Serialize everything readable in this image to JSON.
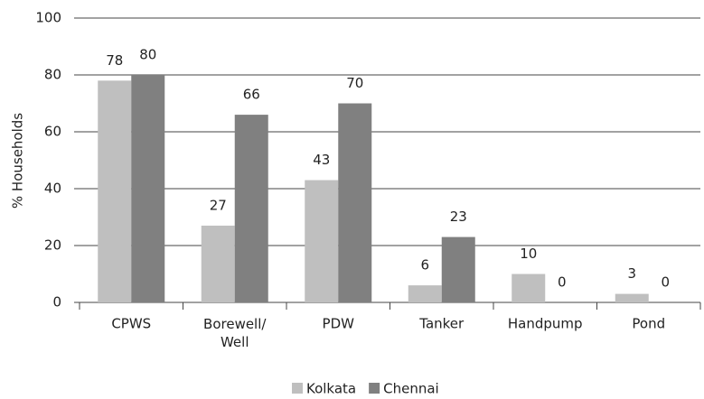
{
  "chart_data": {
    "type": "bar",
    "y_label": "% Households",
    "categories": [
      "CPWS",
      "Borewell/\nWell",
      "PDW",
      "Tanker",
      "Handpump",
      "Pond"
    ],
    "series": [
      {
        "name": "Kolkata",
        "color": "#bfbfbf",
        "values": [
          78,
          27,
          43,
          6,
          10,
          3
        ]
      },
      {
        "name": "Chennai",
        "color": "#808080",
        "values": [
          80,
          66,
          70,
          23,
          0,
          0
        ]
      }
    ],
    "ylim": [
      0,
      100
    ],
    "yticks": [
      0,
      20,
      40,
      60,
      80,
      100
    ],
    "grid": true,
    "legend": "bottom"
  }
}
